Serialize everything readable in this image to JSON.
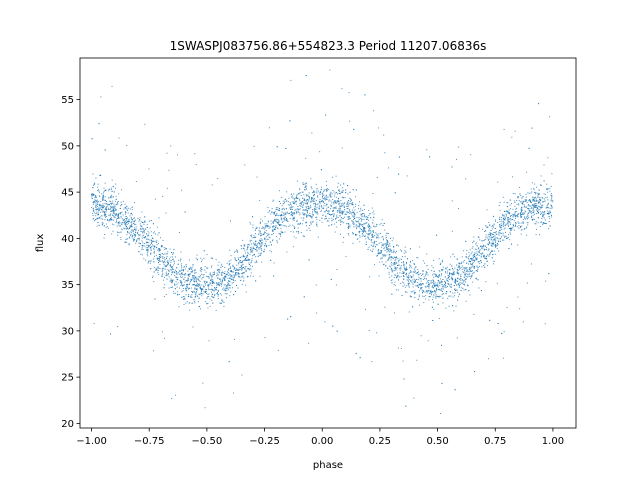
{
  "chart_data": {
    "type": "scatter",
    "title": "1SWASPJ083756.86+554823.3 Period 11207.06836s",
    "xlabel": "phase",
    "ylabel": "flux",
    "xlim": [
      -1.05,
      1.1
    ],
    "ylim": [
      19.5,
      59.5
    ],
    "xticks": [
      -1.0,
      -0.75,
      -0.5,
      -0.25,
      0.0,
      0.25,
      0.5,
      0.75,
      1.0
    ],
    "xtick_labels": [
      "−1.00",
      "−0.75",
      "−0.50",
      "−0.25",
      "0.00",
      "0.25",
      "0.50",
      "0.75",
      "1.00"
    ],
    "yticks": [
      20,
      25,
      30,
      35,
      40,
      45,
      50,
      55
    ],
    "ytick_labels": [
      "20",
      "25",
      "30",
      "35",
      "40",
      "45",
      "50",
      "55"
    ],
    "grid": false,
    "marker_color": "#1f77b4",
    "series": [
      {
        "x": [
          -1.0,
          -0.9,
          -0.8,
          -0.7,
          -0.6,
          -0.5,
          -0.4,
          -0.3,
          -0.2,
          -0.1,
          0.0,
          0.1,
          0.2,
          0.3,
          0.4,
          0.5,
          0.6,
          0.7,
          0.8,
          0.9,
          1.0
        ],
        "y": [
          43.8,
          43.0,
          40.8,
          37.8,
          35.3,
          34.8,
          35.6,
          38.6,
          41.8,
          43.4,
          43.8,
          43.1,
          41.0,
          37.9,
          35.4,
          34.8,
          35.7,
          38.7,
          41.8,
          43.4,
          43.8
        ]
      }
    ]
  }
}
